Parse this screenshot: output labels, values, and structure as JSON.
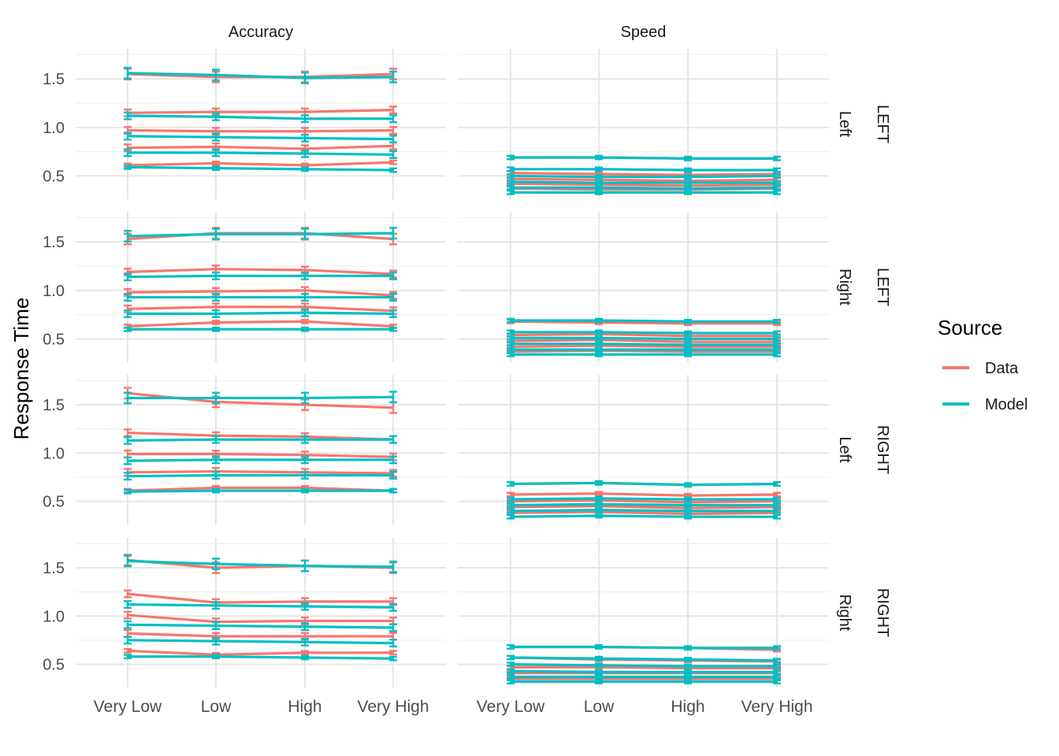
{
  "chart_data": {
    "type": "line",
    "ylabel": "Response Time",
    "xlabel": "",
    "categories": [
      "Very Low",
      "Low",
      "High",
      "Very High"
    ],
    "ylim": [
      0.26,
      1.81
    ],
    "yticks": [
      0.5,
      1.0,
      1.5
    ],
    "ytick_labels": [
      "0.5",
      "1.0",
      "1.5"
    ],
    "column_strips": [
      "Accuracy",
      "Speed"
    ],
    "row_strips": [
      {
        "outer": "LEFT",
        "inner": "Left"
      },
      {
        "outer": "LEFT",
        "inner": "Right"
      },
      {
        "outer": "RIGHT",
        "inner": "Left"
      },
      {
        "outer": "RIGHT",
        "inner": "Right"
      }
    ],
    "legend": {
      "title": "Source",
      "position": "right",
      "entries": [
        {
          "name": "Data",
          "color": "#F8766D"
        },
        {
          "name": "Model",
          "color": "#00BFC4"
        }
      ]
    },
    "grid": true,
    "panels": [
      {
        "row": 0,
        "col": 0,
        "data": [
          [
            0.61,
            0.63,
            0.61,
            0.64
          ],
          [
            0.79,
            0.8,
            0.78,
            0.81
          ],
          [
            0.97,
            0.96,
            0.96,
            0.97
          ],
          [
            1.15,
            1.16,
            1.16,
            1.18
          ],
          [
            1.55,
            1.52,
            1.52,
            1.55
          ]
        ],
        "model": [
          [
            0.59,
            0.58,
            0.57,
            0.56
          ],
          [
            0.74,
            0.74,
            0.73,
            0.72
          ],
          [
            0.91,
            0.9,
            0.89,
            0.88
          ],
          [
            1.12,
            1.11,
            1.09,
            1.09
          ],
          [
            1.56,
            1.54,
            1.51,
            1.52
          ]
        ]
      },
      {
        "row": 0,
        "col": 1,
        "data": [
          [
            0.37,
            0.36,
            0.36,
            0.37
          ],
          [
            0.42,
            0.41,
            0.4,
            0.41
          ],
          [
            0.47,
            0.46,
            0.45,
            0.46
          ],
          [
            0.53,
            0.52,
            0.51,
            0.52
          ],
          [
            0.69,
            0.69,
            0.68,
            0.68
          ]
        ],
        "model": [
          [
            0.33,
            0.33,
            0.33,
            0.33
          ],
          [
            0.38,
            0.38,
            0.37,
            0.38
          ],
          [
            0.44,
            0.43,
            0.43,
            0.43
          ],
          [
            0.5,
            0.49,
            0.49,
            0.5
          ],
          [
            0.57,
            0.57,
            0.56,
            0.56
          ],
          [
            0.69,
            0.69,
            0.68,
            0.68
          ]
        ]
      },
      {
        "row": 1,
        "col": 0,
        "data": [
          [
            0.63,
            0.67,
            0.68,
            0.63
          ],
          [
            0.81,
            0.83,
            0.83,
            0.79
          ],
          [
            0.98,
            0.99,
            1.0,
            0.95
          ],
          [
            1.19,
            1.22,
            1.21,
            1.17
          ],
          [
            1.53,
            1.59,
            1.59,
            1.53
          ]
        ],
        "model": [
          [
            0.6,
            0.6,
            0.6,
            0.6
          ],
          [
            0.76,
            0.76,
            0.77,
            0.76
          ],
          [
            0.93,
            0.93,
            0.93,
            0.93
          ],
          [
            1.14,
            1.15,
            1.15,
            1.15
          ],
          [
            1.56,
            1.58,
            1.58,
            1.59
          ]
        ]
      },
      {
        "row": 1,
        "col": 1,
        "data": [
          [
            0.37,
            0.38,
            0.37,
            0.37
          ],
          [
            0.42,
            0.43,
            0.42,
            0.42
          ],
          [
            0.48,
            0.49,
            0.47,
            0.47
          ],
          [
            0.54,
            0.55,
            0.53,
            0.53
          ],
          [
            0.68,
            0.67,
            0.66,
            0.66
          ]
        ],
        "model": [
          [
            0.34,
            0.34,
            0.34,
            0.34
          ],
          [
            0.39,
            0.39,
            0.39,
            0.39
          ],
          [
            0.45,
            0.45,
            0.44,
            0.44
          ],
          [
            0.51,
            0.51,
            0.5,
            0.5
          ],
          [
            0.57,
            0.57,
            0.56,
            0.56
          ],
          [
            0.69,
            0.69,
            0.68,
            0.68
          ]
        ]
      },
      {
        "row": 2,
        "col": 0,
        "data": [
          [
            0.61,
            0.64,
            0.64,
            0.61
          ],
          [
            0.8,
            0.81,
            0.8,
            0.79
          ],
          [
            0.99,
            0.99,
            0.98,
            0.96
          ],
          [
            1.21,
            1.18,
            1.17,
            1.14
          ],
          [
            1.62,
            1.53,
            1.5,
            1.47
          ]
        ],
        "model": [
          [
            0.6,
            0.61,
            0.61,
            0.61
          ],
          [
            0.76,
            0.77,
            0.77,
            0.77
          ],
          [
            0.92,
            0.93,
            0.93,
            0.93
          ],
          [
            1.13,
            1.14,
            1.14,
            1.14
          ],
          [
            1.57,
            1.57,
            1.57,
            1.58
          ]
        ]
      },
      {
        "row": 2,
        "col": 1,
        "data": [
          [
            0.38,
            0.39,
            0.37,
            0.38
          ],
          [
            0.44,
            0.45,
            0.43,
            0.44
          ],
          [
            0.5,
            0.51,
            0.49,
            0.5
          ],
          [
            0.57,
            0.58,
            0.56,
            0.57
          ],
          [
            0.68,
            0.69,
            0.67,
            0.68
          ]
        ],
        "model": [
          [
            0.34,
            0.35,
            0.34,
            0.34
          ],
          [
            0.4,
            0.41,
            0.4,
            0.4
          ],
          [
            0.46,
            0.47,
            0.46,
            0.46
          ],
          [
            0.52,
            0.53,
            0.52,
            0.52
          ],
          [
            0.68,
            0.69,
            0.67,
            0.68
          ]
        ]
      },
      {
        "row": 3,
        "col": 0,
        "data": [
          [
            0.64,
            0.6,
            0.62,
            0.62
          ],
          [
            0.82,
            0.79,
            0.79,
            0.79
          ],
          [
            1.01,
            0.94,
            0.95,
            0.95
          ],
          [
            1.23,
            1.14,
            1.15,
            1.15
          ],
          [
            1.58,
            1.5,
            1.52,
            1.5
          ]
        ],
        "model": [
          [
            0.58,
            0.58,
            0.57,
            0.56
          ],
          [
            0.75,
            0.74,
            0.73,
            0.72
          ],
          [
            0.91,
            0.9,
            0.89,
            0.88
          ],
          [
            1.12,
            1.11,
            1.1,
            1.09
          ],
          [
            1.57,
            1.54,
            1.52,
            1.51
          ]
        ]
      },
      {
        "row": 3,
        "col": 1,
        "data": [
          [
            0.35,
            0.35,
            0.35,
            0.35
          ],
          [
            0.41,
            0.41,
            0.41,
            0.41
          ],
          [
            0.47,
            0.47,
            0.46,
            0.46
          ],
          [
            0.57,
            0.55,
            0.54,
            0.53
          ],
          [
            0.68,
            0.68,
            0.67,
            0.65
          ]
        ],
        "model": [
          [
            0.32,
            0.32,
            0.32,
            0.32
          ],
          [
            0.37,
            0.37,
            0.37,
            0.37
          ],
          [
            0.43,
            0.42,
            0.42,
            0.42
          ],
          [
            0.5,
            0.49,
            0.48,
            0.48
          ],
          [
            0.57,
            0.56,
            0.55,
            0.54
          ],
          [
            0.68,
            0.68,
            0.67,
            0.67
          ]
        ]
      }
    ]
  }
}
